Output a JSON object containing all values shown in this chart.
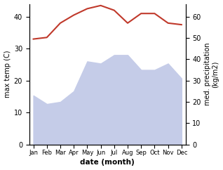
{
  "months": [
    "Jan",
    "Feb",
    "Mar",
    "Apr",
    "May",
    "Jun",
    "Jul",
    "Aug",
    "Sep",
    "Oct",
    "Nov",
    "Dec"
  ],
  "temp": [
    33,
    33.5,
    38,
    40.5,
    42.5,
    43.5,
    42,
    38,
    41,
    41,
    38,
    37.5
  ],
  "precip": [
    23,
    19,
    20,
    25,
    39,
    38,
    42,
    42,
    35,
    35,
    38,
    31
  ],
  "temp_color": "#c0392b",
  "precip_fill_color": "#c5cce8",
  "ylabel_left": "max temp (C)",
  "ylabel_right": "med. precipitation\n(kg/m2)",
  "xlabel": "date (month)",
  "ylim_left": [
    0,
    44
  ],
  "ylim_right": [
    0,
    66
  ],
  "yticks_left": [
    0,
    10,
    20,
    30,
    40
  ],
  "yticks_right": [
    0,
    10,
    20,
    30,
    40,
    50,
    60
  ],
  "bg_color": "#ffffff"
}
